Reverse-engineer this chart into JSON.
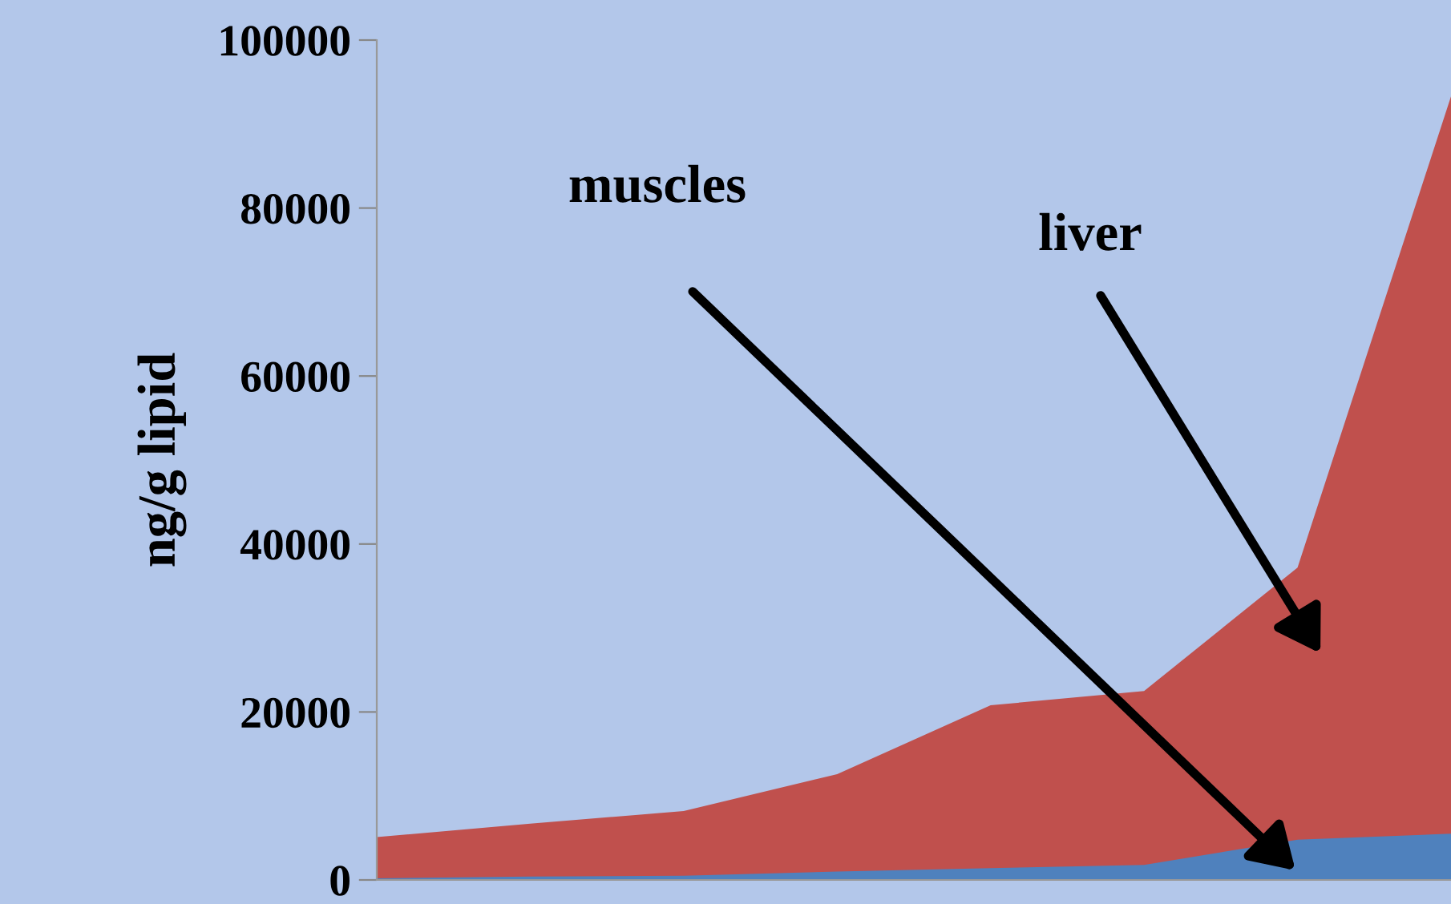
{
  "chart_data": {
    "type": "area",
    "ylabel": "ng/g lipid",
    "categories": [
      null,
      null,
      null,
      null,
      null,
      null,
      null,
      null
    ],
    "series": [
      {
        "color": "#c0504d",
        "values": [
          5100,
          6700,
          8200,
          12600,
          20800,
          22500,
          37200,
          93300
        ]
      },
      {
        "color": "#4f81bd",
        "values": [
          200,
          400,
          500,
          1000,
          1400,
          1800,
          4800,
          5500
        ]
      }
    ],
    "ylim": [
      0,
      100000
    ],
    "yticks": [
      0,
      20000,
      40000,
      60000,
      80000,
      100000
    ],
    "grid": false,
    "legend": false,
    "annotations": [
      "muscles",
      "liver"
    ]
  }
}
